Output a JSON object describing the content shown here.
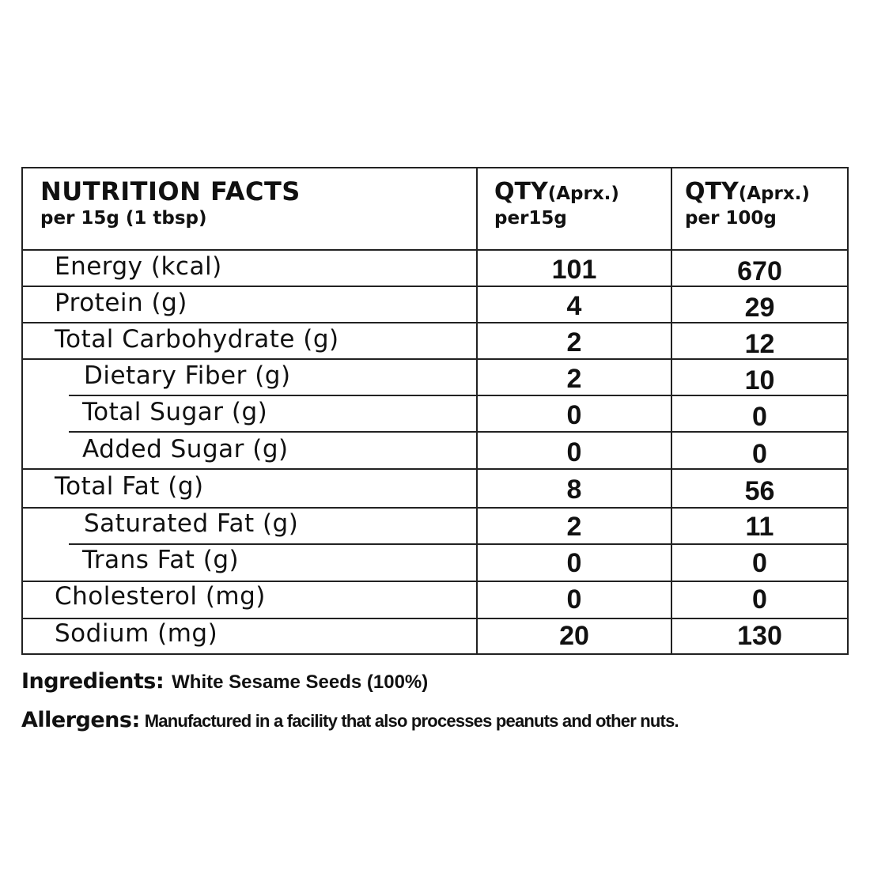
{
  "header": {
    "title": "NUTRITION FACTS",
    "subtitle": "per 15g (1 tbsp)",
    "col1_qty": "QTY",
    "col1_approx": "(Aprx.)",
    "col1_per": "per15g",
    "col2_qty": "QTY",
    "col2_approx": "(Aprx.)",
    "col2_per": "per 100g"
  },
  "rows": [
    {
      "label": "Energy (kcal)",
      "per15g": "101",
      "per100g": "670"
    },
    {
      "label": "Protein (g)",
      "per15g": "4",
      "per100g": "29"
    },
    {
      "label": "Total Carbohydrate (g)",
      "per15g": "2",
      "per100g": "12"
    },
    {
      "label": "Dietary Fiber (g)",
      "per15g": "2",
      "per100g": "10"
    },
    {
      "label": "Total Sugar (g)",
      "per15g": "0",
      "per100g": "0"
    },
    {
      "label": "Added Sugar (g)",
      "per15g": "0",
      "per100g": "0"
    },
    {
      "label": "Total Fat (g)",
      "per15g": "8",
      "per100g": "56"
    },
    {
      "label": "Saturated Fat (g)",
      "per15g": "2",
      "per100g": "11"
    },
    {
      "label": "Trans Fat (g)",
      "per15g": "0",
      "per100g": "0"
    },
    {
      "label": "Cholesterol (mg)",
      "per15g": "0",
      "per100g": "0"
    },
    {
      "label": "Sodium (mg)",
      "per15g": "20",
      "per100g": "130"
    }
  ],
  "ingredients": {
    "label": "Ingredients:",
    "text": "White Sesame Seeds (100%)"
  },
  "allergens": {
    "label": "Allergens:",
    "text": "Manufactured in a facility that also processes peanuts and other nuts."
  }
}
